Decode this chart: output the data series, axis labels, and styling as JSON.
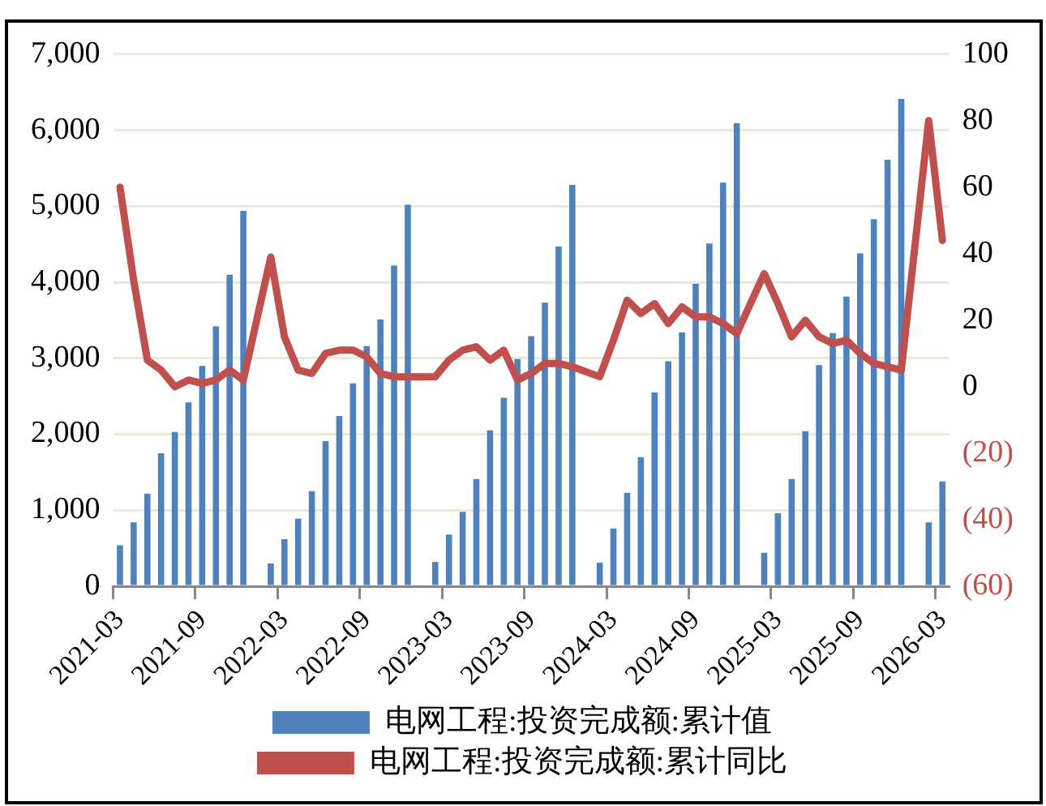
{
  "chart_data": {
    "type": "bar",
    "categories": [
      "2021-03",
      null,
      null,
      null,
      null,
      null,
      "2021-09",
      null,
      null,
      null,
      null,
      null,
      "2022-03",
      null,
      null,
      null,
      null,
      null,
      "2022-09",
      null,
      null,
      null,
      null,
      null,
      "2023-03",
      null,
      null,
      null,
      null,
      null,
      "2023-09",
      null,
      null,
      null,
      null,
      null,
      "2024-03",
      null,
      null,
      null,
      null,
      null,
      "2024-09",
      null,
      null,
      null,
      null,
      null,
      "2025-03",
      null,
      null,
      null,
      null,
      null,
      "2025-09",
      null,
      null,
      null,
      null,
      null,
      "2026-03"
    ],
    "series": [
      {
        "name": "电网工程:投资完成额:累计值",
        "color": "#4f81bd",
        "values": [
          540,
          840,
          1220,
          1750,
          2030,
          2420,
          2900,
          3420,
          4100,
          4940,
          null,
          300,
          620,
          890,
          1250,
          1910,
          2240,
          2670,
          3160,
          3510,
          4220,
          5020,
          null,
          320,
          680,
          980,
          1410,
          2050,
          2480,
          2990,
          3290,
          3730,
          4470,
          5280,
          null,
          310,
          760,
          1230,
          1700,
          2550,
          2960,
          3340,
          3980,
          4510,
          5310,
          6090,
          null,
          440,
          960,
          1410,
          2040,
          2910,
          3330,
          3810,
          4380,
          4830,
          5610,
          6410,
          null,
          840,
          1380
        ]
      },
      {
        "name": "电网工程:投资完成额:累计同比",
        "type": "line",
        "axis": "y2",
        "color": "#c0504d",
        "values": [
          60,
          32,
          8,
          5,
          0,
          2,
          1,
          2,
          5,
          2,
          null,
          39,
          15,
          5,
          4,
          10,
          11,
          11,
          9,
          4,
          3,
          3,
          null,
          3,
          8,
          11,
          12,
          8,
          11,
          2,
          4,
          7,
          7,
          6,
          null,
          3,
          14,
          26,
          22,
          25,
          19,
          24,
          21,
          21,
          19,
          16,
          null,
          34,
          25,
          15,
          20,
          15,
          13,
          14,
          10,
          7,
          6,
          5,
          null,
          80,
          44
        ]
      }
    ],
    "ylim": [
      0,
      7000
    ],
    "yticks": [
      0,
      {
        "value": 1000,
        "label": "1,000"
      },
      {
        "value": 2000,
        "label": "2,000"
      },
      {
        "value": 3000,
        "label": "3,000"
      },
      {
        "value": 4000,
        "label": "4,000"
      },
      {
        "value": 5000,
        "label": "5,000"
      },
      {
        "value": 6000,
        "label": "6,000"
      },
      {
        "value": 7000,
        "label": "7,000"
      }
    ],
    "y2lim": [
      -60,
      100
    ],
    "y2ticks": [
      {
        "value": -60,
        "label": "(60)"
      },
      {
        "value": -40,
        "label": "(40)"
      },
      {
        "value": -20,
        "label": "(20)"
      },
      0,
      20,
      40,
      60,
      80,
      100
    ],
    "grid": "y",
    "legend": "bottom",
    "marker": "none",
    "line_style": "solid"
  }
}
